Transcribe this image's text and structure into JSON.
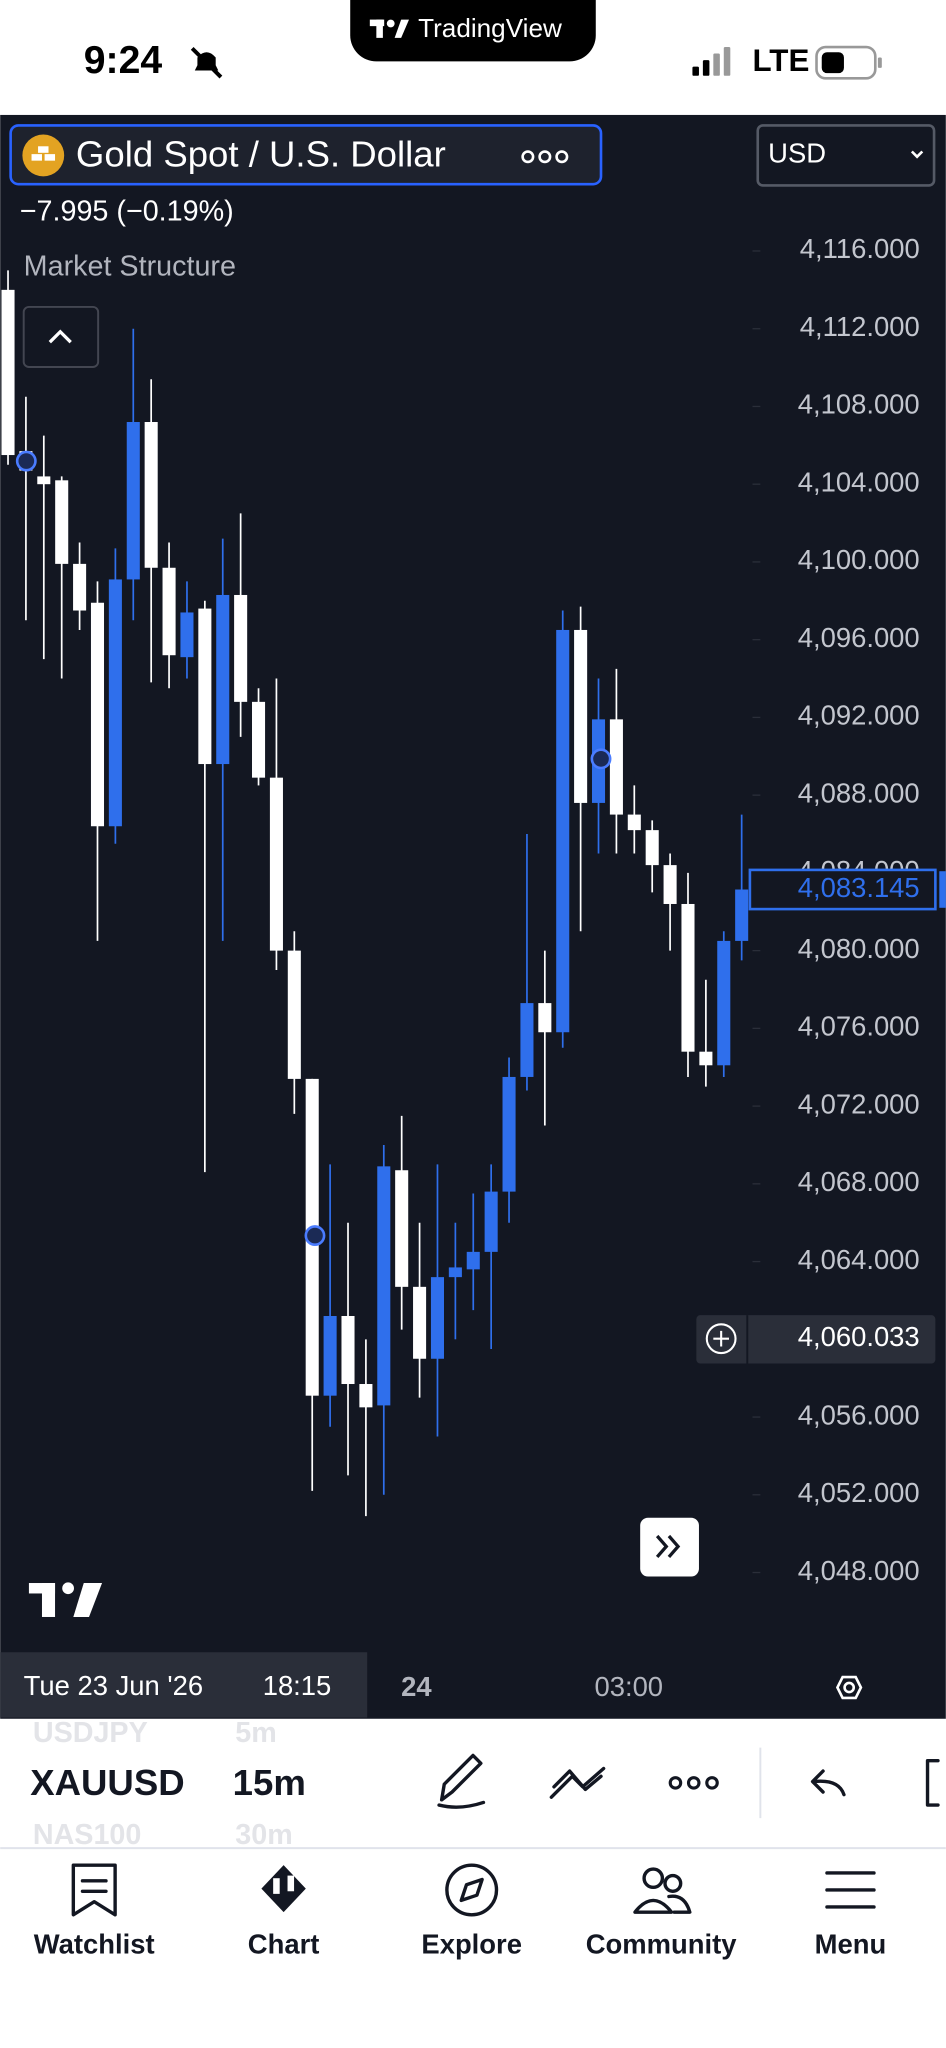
{
  "status_bar": {
    "time": "9:24",
    "network": "LTE"
  },
  "app_badge": "TradingView",
  "symbol_header": {
    "name": "Gold Spot / U.S. Dollar",
    "currency": "USD",
    "change": "−7.995 (−0.19%)",
    "indicator": "Market Structure"
  },
  "chart": {
    "type": "candlestick",
    "up_color": "#2f6fec",
    "down_color": "#ffffff",
    "background": "#131722",
    "ylim": [
      4044.1,
      4123.0
    ],
    "yticks": [
      {
        "value": 4116,
        "label": "4,116.000"
      },
      {
        "value": 4112,
        "label": "4,112.000"
      },
      {
        "value": 4108,
        "label": "4,108.000"
      },
      {
        "value": 4104,
        "label": "4,104.000"
      },
      {
        "value": 4100,
        "label": "4,100.000"
      },
      {
        "value": 4096,
        "label": "4,096.000"
      },
      {
        "value": 4092,
        "label": "4,092.000"
      },
      {
        "value": 4088,
        "label": "4,088.000"
      },
      {
        "value": 4084,
        "label": "4,084.000"
      },
      {
        "value": 4080,
        "label": "4,080.000"
      },
      {
        "value": 4076,
        "label": "4,076.000"
      },
      {
        "value": 4072,
        "label": "4,072.000"
      },
      {
        "value": 4068,
        "label": "4,068.000"
      },
      {
        "value": 4064,
        "label": "4,064.000"
      },
      {
        "value": 4060,
        "label": "4,060.000"
      },
      {
        "value": 4056,
        "label": "4,056.000"
      },
      {
        "value": 4052,
        "label": "4,052.000"
      },
      {
        "value": 4048,
        "label": "4,048.000"
      }
    ],
    "open": [
      4114,
      4105.7,
      4104.4,
      4104.2,
      4099.9,
      4097.9,
      4086.4,
      4099.1,
      4107.2,
      4099.7,
      4095.1,
      4097.6,
      4089.6,
      4098.3,
      4092.8,
      4088.9,
      4080.0,
      4073.4,
      4057.1,
      4061.2,
      4057.7,
      4056.6,
      4068.7,
      4062.7,
      4059.0,
      4063.2,
      4063.6,
      4064.5,
      4067.6,
      4073.5,
      4077.3,
      4075.8,
      4096.5,
      4087.6,
      4091.9,
      4087.0,
      4086.2,
      4084.4,
      4082.4,
      4074.8,
      4074.1,
      4080.5
    ],
    "high": [
      4115,
      4108.5,
      4106.5,
      4104.4,
      4101,
      4099,
      4100.7,
      4112,
      4109.4,
      4101,
      4099,
      4098,
      4101.2,
      4102.5,
      4093.5,
      4094,
      4081,
      4073.4,
      4069,
      4066,
      4060,
      4070,
      4071.5,
      4066,
      4069,
      4066,
      4067.5,
      4069,
      4074.5,
      4086,
      4080,
      4097.5,
      4097.7,
      4094,
      4094.5,
      4088.5,
      4086.7,
      4085,
      4084,
      4078.5,
      4081,
      4087
    ],
    "low": [
      4105,
      4097,
      4095,
      4094,
      4096.5,
      4080.5,
      4085.5,
      4097,
      4093.8,
      4093.5,
      4094,
      4068.6,
      4080.5,
      4091,
      4088.5,
      4079,
      4071.6,
      4052.2,
      4055.5,
      4053,
      4050.9,
      4052,
      4060.5,
      4057,
      4055,
      4060,
      4061.5,
      4059.5,
      4066,
      4072.8,
      4071,
      4075,
      4081,
      4085,
      4085,
      4085,
      4083,
      4080,
      4073.5,
      4073,
      4073.5,
      4079.5
    ],
    "close": [
      4105.5,
      4104.7,
      4104.0,
      4099.9,
      4097.5,
      4086.4,
      4099.1,
      4107.2,
      4099.7,
      4095.2,
      4097.4,
      4089.6,
      4098.3,
      4092.8,
      4088.9,
      4080.0,
      4073.4,
      4057.1,
      4061.2,
      4057.7,
      4056.5,
      4068.9,
      4062.7,
      4059.0,
      4063.2,
      4063.7,
      4064.5,
      4067.6,
      4073.5,
      4077.3,
      4075.8,
      4096.5,
      4087.6,
      4091.9,
      4087.0,
      4086.2,
      4084.4,
      4082.4,
      4074.8,
      4074.1,
      4080.5,
      4083.145
    ],
    "last_price": {
      "value": 4083.145,
      "label": "4,083.145"
    },
    "crosshair_price": {
      "value": 4060.033,
      "label": "4,060.033"
    },
    "crosshair_date": "Tue 23 Jun '26",
    "crosshair_time": "18:15",
    "time_labels": [
      "24",
      "03:00"
    ]
  },
  "toolbar": {
    "symbol_prev": "USDJPY",
    "symbol": "XAUUSD",
    "symbol_next": "NAS100",
    "interval_prev": "5m",
    "interval": "15m",
    "interval_next": "30m"
  },
  "tab_bar": {
    "tabs": [
      "Watchlist",
      "Chart",
      "Explore",
      "Community",
      "Menu"
    ]
  }
}
